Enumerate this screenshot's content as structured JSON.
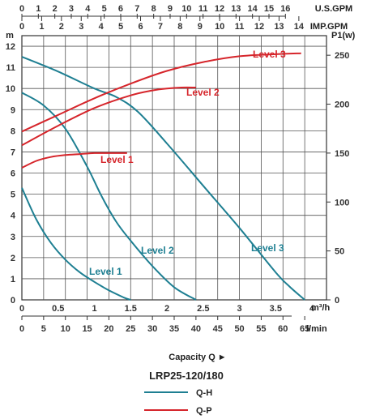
{
  "chart_data": {
    "type": "line",
    "model": "LRP25-120/180",
    "capacity_label": "Capacity Q ►",
    "units": {
      "us_gpm": "U.S.GPM",
      "imp_gpm": "IMP.GPM",
      "head": "m",
      "power": "P1(w)",
      "m3h": "m³/h",
      "lmin": "l/min"
    },
    "axes": {
      "us_gpm_ticks": [
        "0",
        "1",
        "2",
        "3",
        "4",
        "5",
        "6",
        "7",
        "8",
        "9",
        "10",
        "11",
        "12",
        "13",
        "14",
        "15",
        "16"
      ],
      "imp_gpm_ticks": [
        "0",
        "1",
        "2",
        "3",
        "4",
        "5",
        "6",
        "7",
        "8",
        "9",
        "10",
        "11",
        "12",
        "13",
        "14"
      ],
      "head_ticks": [
        "0",
        "1",
        "2",
        "3",
        "4",
        "5",
        "6",
        "7",
        "8",
        "9",
        "10",
        "11",
        "12"
      ],
      "head_range": [
        0,
        12.5
      ],
      "power_ticks": [
        "0",
        "50",
        "100",
        "150",
        "200",
        "250"
      ],
      "power_range": [
        0,
        270
      ],
      "m3h_ticks": [
        "0",
        "0.5",
        "1",
        "1.5",
        "2",
        "2.5",
        "3",
        "3.5",
        "4"
      ],
      "m3h_range": [
        0,
        4.2
      ],
      "lmin_ticks": [
        "0",
        "5",
        "10",
        "15",
        "20",
        "25",
        "30",
        "35",
        "40",
        "45",
        "50",
        "55",
        "60",
        "65"
      ],
      "grid": true
    },
    "series_qh": [
      {
        "name": "Level 1",
        "x": [
          0,
          0.2,
          0.4,
          0.6,
          0.8,
          1.0,
          1.2,
          1.4,
          1.5
        ],
        "y": [
          5.3,
          3.8,
          2.7,
          1.9,
          1.3,
          0.85,
          0.45,
          0.12,
          0
        ]
      },
      {
        "name": "Level 2",
        "x": [
          0,
          0.3,
          0.6,
          0.9,
          1.1,
          1.3,
          1.5,
          1.8,
          2.1,
          2.4
        ],
        "y": [
          9.8,
          9.2,
          8.1,
          6.3,
          4.9,
          3.7,
          2.8,
          1.6,
          0.6,
          0
        ]
      },
      {
        "name": "Level 3",
        "x": [
          0,
          0.5,
          1.0,
          1.3,
          1.6,
          2.0,
          2.5,
          3.0,
          3.5,
          3.7,
          3.9
        ],
        "y": [
          11.5,
          10.8,
          10.0,
          9.6,
          8.9,
          7.4,
          5.4,
          3.4,
          1.3,
          0.6,
          0
        ]
      }
    ],
    "series_qp": [
      {
        "name": "Level 1",
        "x": [
          0,
          0.2,
          0.4,
          0.6,
          0.8,
          1.0,
          1.2,
          1.45
        ],
        "y": [
          135,
          142,
          146,
          148,
          149,
          150,
          150,
          150
        ]
      },
      {
        "name": "Level 2",
        "x": [
          0,
          0.5,
          1.0,
          1.5,
          1.8,
          2.0,
          2.2,
          2.4
        ],
        "y": [
          158,
          178,
          196,
          209,
          214,
          216,
          217,
          217
        ]
      },
      {
        "name": "Level 3",
        "x": [
          0,
          0.5,
          1.0,
          1.5,
          2.0,
          2.5,
          3.0,
          3.5,
          3.85
        ],
        "y": [
          172,
          189,
          206,
          221,
          234,
          243,
          249,
          251,
          252
        ]
      }
    ],
    "legend": [
      {
        "label": "Q-H",
        "color": "#1e7f92"
      },
      {
        "label": "Q-P",
        "color": "#d6252b"
      }
    ],
    "colors": {
      "qh": "#1e7f92",
      "qp": "#d6252b",
      "grid": "#555555"
    }
  }
}
